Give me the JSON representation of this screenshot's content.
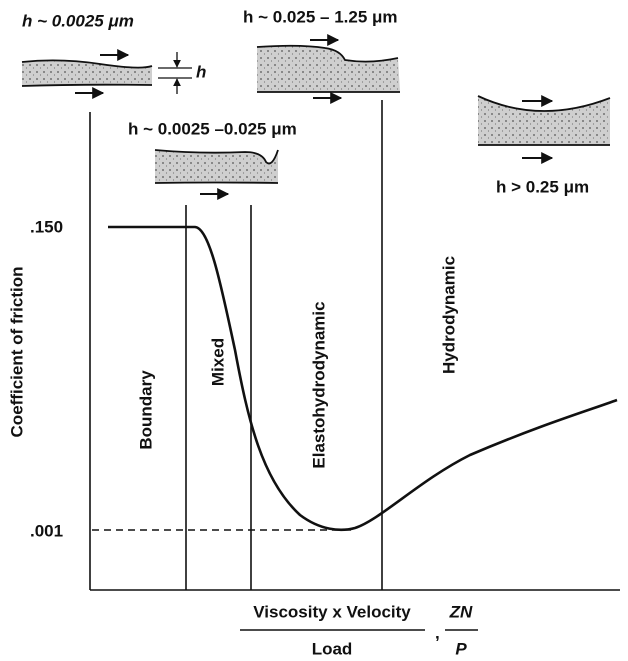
{
  "film_labels": {
    "boundary": "h ~ 0.0025 μm",
    "elastohydrodynamic": "h ~ 0.025 – 1.25 μm",
    "mixed": "h ~ 0.0025 –0.025 μm",
    "hydrodynamic": "h > 0.25 μm",
    "thickness_symbol": "h"
  },
  "axes": {
    "y_label": "Coefficient of friction",
    "y_high": ".150",
    "y_low": ".001",
    "x_label": {
      "numerator": "Viscosity x Velocity",
      "denominator": "Load",
      "separator": ",",
      "alt_numerator": "ZN",
      "alt_denominator": "P"
    }
  },
  "regions": [
    "Boundary",
    "Mixed",
    "Elastohydrodynamic",
    "Hydrodynamic"
  ]
}
